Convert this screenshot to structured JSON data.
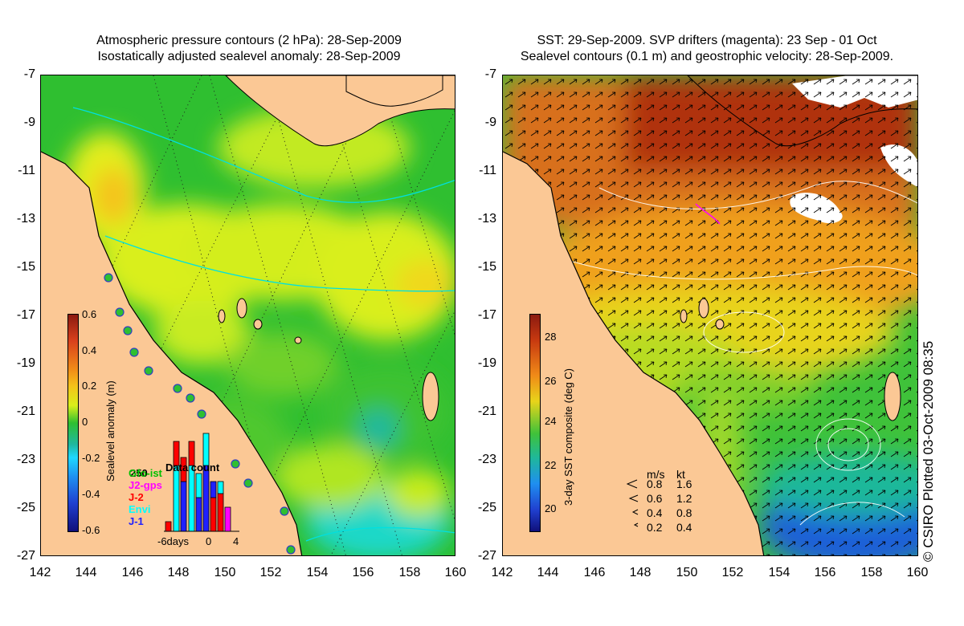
{
  "left_panel": {
    "title_line1": "Atmospheric pressure contours (2 hPa): 28-Sep-2009",
    "title_line2": "Isostatically adjusted sealevel anomaly: 28-Sep-2009",
    "colorbar": {
      "title": "Sealevel anomaly (m)",
      "ticks": [
        "0.6",
        "0.4",
        "0.2",
        "0",
        "-0.2",
        "-0.4",
        "-0.6"
      ]
    },
    "data_count": {
      "title": "Data count",
      "max_label": "250",
      "xticks": [
        "-6days",
        "0",
        "4"
      ],
      "missions": [
        {
          "name": "Jason-1",
          "label": "J-1",
          "color": "#2020ff"
        },
        {
          "name": "Envisat",
          "label": "Envi",
          "color": "#00ffff"
        },
        {
          "name": "Jason-2",
          "label": "J-2",
          "color": "#ff0000"
        },
        {
          "name": "Jason-2 GPS",
          "label": "J2-gps",
          "color": "#ff00ff"
        },
        {
          "name": "Gfo",
          "label": "Gfo-ist",
          "color": "#00c000"
        }
      ]
    }
  },
  "right_panel": {
    "title_line1": "SST: 29-Sep-2009. SVP drifters (magenta): 23 Sep - 01 Oct",
    "title_line2": "Sealevel contours (0.1 m) and geostrophic velocity: 28-Sep-2009.",
    "colorbar": {
      "title": "3-day SST composite (deg C)",
      "ticks": [
        "28",
        "26",
        "24",
        "22",
        "20"
      ]
    },
    "velocity_legend": {
      "header_ms": "m/s",
      "header_kt": "kt",
      "rows": [
        {
          "ms": "0.8",
          "kt": "1.6"
        },
        {
          "ms": "0.6",
          "kt": "1.2"
        },
        {
          "ms": "0.4",
          "kt": "0.8"
        },
        {
          "ms": "0.2",
          "kt": "0.4"
        }
      ]
    }
  },
  "axes": {
    "y_ticks": [
      "-7",
      "-9",
      "-11",
      "-13",
      "-15",
      "-17",
      "-19",
      "-21",
      "-23",
      "-25",
      "-27"
    ],
    "x_ticks": [
      "142",
      "144",
      "146",
      "148",
      "150",
      "152",
      "154",
      "156",
      "158",
      "160"
    ]
  },
  "credit": "© CSIRO Plotted 03-Oct-2009 08:35",
  "colors": {
    "land": "#fbc895",
    "ssh_green": "#2fbf30",
    "ssh_yellow": "#d9ef1a",
    "ssh_orange": "#f5c21a",
    "ssh_cyan": "#1fd8c8",
    "sst_red": "#b0320e",
    "sst_orange": "#f08a18",
    "sst_yellow": "#e8d41a",
    "sst_green": "#3fc23a",
    "sst_blue": "#1f5fd8",
    "coast": "#000000",
    "contour_cyan": "#00e0e0"
  }
}
